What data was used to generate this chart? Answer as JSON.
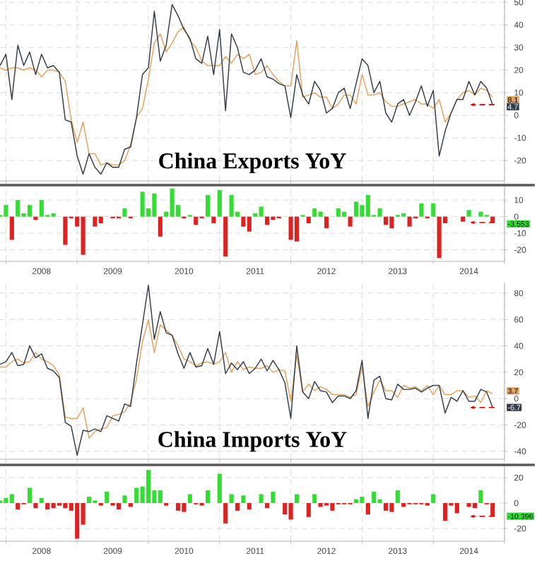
{
  "chart_data": [
    {
      "type": "line",
      "title": "China Exports YoY",
      "x": [
        "2007-12",
        "2008-01",
        "2008-02",
        "2008-03",
        "2008-04",
        "2008-05",
        "2008-06",
        "2008-07",
        "2008-08",
        "2008-09",
        "2008-10",
        "2008-11",
        "2008-12",
        "2009-01",
        "2009-02",
        "2009-03",
        "2009-04",
        "2009-05",
        "2009-06",
        "2009-07",
        "2009-08",
        "2009-09",
        "2009-10",
        "2009-11",
        "2009-12",
        "2010-01",
        "2010-02",
        "2010-03",
        "2010-04",
        "2010-05",
        "2010-06",
        "2010-07",
        "2010-08",
        "2010-09",
        "2010-10",
        "2010-11",
        "2010-12",
        "2011-01",
        "2011-02",
        "2011-03",
        "2011-04",
        "2011-05",
        "2011-06",
        "2011-07",
        "2011-08",
        "2011-09",
        "2011-10",
        "2011-11",
        "2011-12",
        "2012-01",
        "2012-02",
        "2012-03",
        "2012-04",
        "2012-05",
        "2012-06",
        "2012-07",
        "2012-08",
        "2012-09",
        "2012-10",
        "2012-11",
        "2012-12",
        "2013-01",
        "2013-02",
        "2013-03",
        "2013-04",
        "2013-05",
        "2013-06",
        "2013-07",
        "2013-08",
        "2013-09",
        "2013-10",
        "2013-11",
        "2013-12",
        "2014-01",
        "2014-02",
        "2014-03",
        "2014-04",
        "2014-05",
        "2014-06",
        "2014-07",
        "2014-08",
        "2014-09",
        "2014-10",
        "2014-11"
      ],
      "series": [
        {
          "color": "#e3a35c",
          "values": [
            21,
            20,
            21,
            21,
            20,
            21,
            20,
            17,
            20,
            20,
            19,
            15,
            -2,
            -12,
            -3,
            -17,
            -17,
            -22,
            -21,
            -22,
            -22,
            -20,
            -13,
            -1,
            3,
            16,
            32,
            36,
            28,
            32,
            37,
            39,
            33,
            30,
            24,
            22,
            22,
            22,
            26,
            23,
            27,
            25,
            27,
            18,
            19,
            22,
            18,
            15,
            13,
            13,
            33,
            8,
            9,
            10,
            8,
            8,
            3,
            5,
            9,
            9,
            5,
            18,
            9,
            9,
            10,
            6,
            4,
            4,
            5,
            6,
            7,
            5,
            5,
            3,
            7,
            -3,
            1,
            7,
            10,
            11,
            9,
            12,
            11,
            8.1
          ]
        },
        {
          "color": "#343d4a",
          "values": [
            22,
            27,
            7,
            31,
            22,
            28,
            18,
            27,
            21,
            22,
            19,
            -2,
            -3,
            -18,
            -26,
            -17,
            -23,
            -26,
            -21,
            -23,
            -23,
            -15,
            -14,
            -1,
            18,
            21,
            46,
            24,
            31,
            49,
            44,
            38,
            34,
            25,
            23,
            35,
            18,
            38,
            2,
            36,
            30,
            19,
            18,
            20,
            25,
            17,
            16,
            14,
            13,
            -1,
            18,
            9,
            5,
            15,
            11,
            1,
            3,
            10,
            12,
            3,
            14,
            25,
            22,
            10,
            15,
            1,
            -3,
            5,
            7,
            0,
            6,
            13,
            4,
            11,
            -18,
            -7,
            1,
            7,
            7,
            15,
            9,
            15,
            12,
            4.7
          ]
        }
      ],
      "xlim": [
        "2007-12",
        "2015-01"
      ],
      "xticks": [
        {
          "value": "2008-01",
          "label": null
        },
        {
          "value": "2009-01",
          "label": null
        },
        {
          "value": "2010-01",
          "label": null
        },
        {
          "value": "2011-01",
          "label": null
        },
        {
          "value": "2012-01",
          "label": null
        },
        {
          "value": "2013-01",
          "label": null
        },
        {
          "value": "2014-01",
          "label": null
        },
        {
          "value": "2015-01",
          "label": null
        }
      ],
      "ylim": [
        -29,
        51
      ],
      "yticks": [
        -20,
        -10,
        0,
        10,
        20,
        30,
        40,
        50
      ],
      "tick_labels": "y",
      "grid": true,
      "annotations": [
        {
          "text": "8.1",
          "x": "2014-11",
          "y": 8.1
        },
        {
          "text": "4.7",
          "x": "2014-11",
          "y": 4.7
        }
      ]
    },
    {
      "type": "bar",
      "x": [
        "2007-12",
        "2008-01",
        "2008-02",
        "2008-03",
        "2008-04",
        "2008-05",
        "2008-06",
        "2008-07",
        "2008-08",
        "2008-09",
        "2008-10",
        "2008-11",
        "2008-12",
        "2009-01",
        "2009-02",
        "2009-03",
        "2009-04",
        "2009-05",
        "2009-06",
        "2009-07",
        "2009-08",
        "2009-09",
        "2009-10",
        "2009-11",
        "2009-12",
        "2010-01",
        "2010-02",
        "2010-03",
        "2010-04",
        "2010-05",
        "2010-06",
        "2010-07",
        "2010-08",
        "2010-09",
        "2010-10",
        "2010-11",
        "2010-12",
        "2011-01",
        "2011-02",
        "2011-03",
        "2011-04",
        "2011-05",
        "2011-06",
        "2011-07",
        "2011-08",
        "2011-09",
        "2011-10",
        "2011-11",
        "2011-12",
        "2012-01",
        "2012-02",
        "2012-03",
        "2012-04",
        "2012-05",
        "2012-06",
        "2012-07",
        "2012-08",
        "2012-09",
        "2012-10",
        "2012-11",
        "2012-12",
        "2013-01",
        "2013-02",
        "2013-03",
        "2013-04",
        "2013-05",
        "2013-06",
        "2013-07",
        "2013-08",
        "2013-09",
        "2013-10",
        "2013-11",
        "2013-12",
        "2014-01",
        "2014-02",
        "2014-03",
        "2014-04",
        "2014-05",
        "2014-06",
        "2014-07",
        "2014-08",
        "2014-09",
        "2014-10",
        "2014-11"
      ],
      "values": [
        1,
        7,
        -14,
        10,
        2,
        7,
        -2,
        10,
        1,
        2,
        0,
        -17,
        -1,
        -6,
        -23,
        0,
        -6,
        -4,
        0,
        -1,
        -1,
        5,
        -1,
        0,
        15,
        5,
        14,
        -12,
        3,
        17,
        7,
        -1,
        1,
        -5,
        -1,
        13,
        -4,
        16,
        -24,
        13,
        3,
        -6,
        -9,
        2,
        6,
        -5,
        -2,
        -1,
        0,
        -14,
        -15,
        1,
        -4,
        5,
        3,
        -7,
        0,
        5,
        3,
        -6,
        9,
        7,
        13,
        1,
        5,
        -5,
        -7,
        1,
        2,
        -6,
        -1,
        8,
        -1,
        8,
        -25,
        -4,
        0,
        0,
        -3,
        4,
        0,
        3,
        1,
        -3.553
      ],
      "colors": [
        "#33dd33",
        "#33dd33",
        "#dd2222",
        "#33dd33",
        "#33dd33",
        "#33dd33",
        "#dd2222",
        "#33dd33",
        "#33dd33",
        "#33dd33",
        "#33dd33",
        "#dd2222",
        "#dd2222",
        "#dd2222",
        "#dd2222",
        "#33dd33",
        "#dd2222",
        "#dd2222",
        "#33dd33",
        "#dd2222",
        "#dd2222",
        "#33dd33",
        "#dd2222",
        "#33dd33",
        "#33dd33",
        "#33dd33",
        "#33dd33",
        "#dd2222",
        "#33dd33",
        "#33dd33",
        "#33dd33",
        "#dd2222",
        "#33dd33",
        "#dd2222",
        "#dd2222",
        "#33dd33",
        "#dd2222",
        "#33dd33",
        "#dd2222",
        "#33dd33",
        "#33dd33",
        "#dd2222",
        "#dd2222",
        "#33dd33",
        "#33dd33",
        "#dd2222",
        "#dd2222",
        "#dd2222",
        "#33dd33",
        "#dd2222",
        "#dd2222",
        "#33dd33",
        "#dd2222",
        "#33dd33",
        "#33dd33",
        "#dd2222",
        "#33dd33",
        "#33dd33",
        "#33dd33",
        "#dd2222",
        "#33dd33",
        "#33dd33",
        "#33dd33",
        "#33dd33",
        "#33dd33",
        "#dd2222",
        "#dd2222",
        "#33dd33",
        "#33dd33",
        "#dd2222",
        "#dd2222",
        "#33dd33",
        "#dd2222",
        "#33dd33",
        "#dd2222",
        "#dd2222",
        "#33dd33",
        "#33dd33",
        "#dd2222",
        "#33dd33",
        "#33dd33",
        "#33dd33",
        "#33dd33",
        "#dd2222"
      ],
      "xlim": [
        "2007-12",
        "2015-01"
      ],
      "xticks": [
        {
          "value": "2008-01",
          "label": null
        },
        {
          "value": "2008-07",
          "label": "2008"
        },
        {
          "value": "2009-01",
          "label": null
        },
        {
          "value": "2009-07",
          "label": "2009"
        },
        {
          "value": "2010-01",
          "label": null
        },
        {
          "value": "2010-07",
          "label": "2010"
        },
        {
          "value": "2011-01",
          "label": null
        },
        {
          "value": "2011-07",
          "label": "2011"
        },
        {
          "value": "2012-01",
          "label": null
        },
        {
          "value": "2012-07",
          "label": "2012"
        },
        {
          "value": "2013-01",
          "label": null
        },
        {
          "value": "2013-07",
          "label": "2013"
        },
        {
          "value": "2014-01",
          "label": null
        },
        {
          "value": "2014-07",
          "label": "2014"
        },
        {
          "value": "2015-01",
          "label": null
        }
      ],
      "ylim": [
        -27,
        19
      ],
      "yticks": [
        -20,
        -10,
        0,
        10
      ],
      "grid": true,
      "annotations": [
        {
          "text": "-3.553",
          "x": "2014-11",
          "y": -3.553
        }
      ]
    },
    {
      "type": "line",
      "title": "China Imports YoY",
      "x": [
        "2007-12",
        "2008-01",
        "2008-02",
        "2008-03",
        "2008-04",
        "2008-05",
        "2008-06",
        "2008-07",
        "2008-08",
        "2008-09",
        "2008-10",
        "2008-11",
        "2008-12",
        "2009-01",
        "2009-02",
        "2009-03",
        "2009-04",
        "2009-05",
        "2009-06",
        "2009-07",
        "2009-08",
        "2009-09",
        "2009-10",
        "2009-11",
        "2009-12",
        "2010-01",
        "2010-02",
        "2010-03",
        "2010-04",
        "2010-05",
        "2010-06",
        "2010-07",
        "2010-08",
        "2010-09",
        "2010-10",
        "2010-11",
        "2010-12",
        "2011-01",
        "2011-02",
        "2011-03",
        "2011-04",
        "2011-05",
        "2011-06",
        "2011-07",
        "2011-08",
        "2011-09",
        "2011-10",
        "2011-11",
        "2011-12",
        "2012-01",
        "2012-02",
        "2012-03",
        "2012-04",
        "2012-05",
        "2012-06",
        "2012-07",
        "2012-08",
        "2012-09",
        "2012-10",
        "2012-11",
        "2012-12",
        "2013-01",
        "2013-02",
        "2013-03",
        "2013-04",
        "2013-05",
        "2013-06",
        "2013-07",
        "2013-08",
        "2013-09",
        "2013-10",
        "2013-11",
        "2013-12",
        "2014-01",
        "2014-02",
        "2014-03",
        "2014-04",
        "2014-05",
        "2014-06",
        "2014-07",
        "2014-08",
        "2014-09",
        "2014-10",
        "2014-11"
      ],
      "series": [
        {
          "color": "#e3a35c",
          "values": [
            24,
            24,
            28,
            30,
            27,
            28,
            35,
            30,
            28,
            25,
            18,
            -14,
            -15,
            -15,
            -7,
            -30,
            -25,
            -23,
            -22,
            -13,
            -12,
            -10,
            -3,
            15,
            43,
            60,
            35,
            56,
            52,
            48,
            40,
            30,
            28,
            25,
            27,
            28,
            26,
            28,
            35,
            20,
            28,
            22,
            24,
            23,
            23,
            25,
            20,
            22,
            21,
            -2,
            33,
            5,
            11,
            6,
            9,
            7,
            3,
            3,
            3,
            1,
            3,
            24,
            -6,
            5,
            14,
            6,
            6,
            1,
            10,
            8,
            9,
            6,
            10,
            3,
            10,
            3,
            3,
            6,
            6,
            1,
            2,
            -3,
            6,
            3.7
          ]
        },
        {
          "color": "#343d4a",
          "values": [
            26,
            28,
            35,
            25,
            26,
            40,
            31,
            34,
            23,
            21,
            16,
            -18,
            -21,
            -43,
            -24,
            -25,
            -23,
            -25,
            -13,
            -15,
            -17,
            -4,
            -6,
            27,
            56,
            86,
            45,
            66,
            50,
            48,
            34,
            23,
            35,
            24,
            25,
            38,
            26,
            51,
            19,
            27,
            22,
            28,
            19,
            23,
            30,
            21,
            29,
            22,
            12,
            -15,
            40,
            5,
            0,
            13,
            6,
            5,
            -3,
            2,
            2,
            0,
            6,
            29,
            -15,
            14,
            17,
            0,
            -1,
            11,
            7,
            7,
            8,
            5,
            8,
            10,
            10,
            -11,
            1,
            -2,
            6,
            -2,
            -2,
            7,
            5,
            -6.7
          ]
        }
      ],
      "xlim": [
        "2007-12",
        "2015-01"
      ],
      "xticks": [
        {
          "value": "2008-01",
          "label": null
        },
        {
          "value": "2009-01",
          "label": null
        },
        {
          "value": "2010-01",
          "label": null
        },
        {
          "value": "2011-01",
          "label": null
        },
        {
          "value": "2012-01",
          "label": null
        },
        {
          "value": "2013-01",
          "label": null
        },
        {
          "value": "2014-01",
          "label": null
        },
        {
          "value": "2015-01",
          "label": null
        }
      ],
      "ylim": [
        -46,
        88
      ],
      "yticks": [
        -40,
        -20,
        0,
        20,
        40,
        60,
        80
      ],
      "tick_labels": "y",
      "grid": true,
      "annotations": [
        {
          "text": "3.7",
          "x": "2014-11",
          "y": 3.7
        },
        {
          "text": "-6.7",
          "x": "2014-11",
          "y": -6.7
        }
      ]
    },
    {
      "type": "bar",
      "x": [
        "2007-12",
        "2008-01",
        "2008-02",
        "2008-03",
        "2008-04",
        "2008-05",
        "2008-06",
        "2008-07",
        "2008-08",
        "2008-09",
        "2008-10",
        "2008-11",
        "2008-12",
        "2009-01",
        "2009-02",
        "2009-03",
        "2009-04",
        "2009-05",
        "2009-06",
        "2009-07",
        "2009-08",
        "2009-09",
        "2009-10",
        "2009-11",
        "2009-12",
        "2010-01",
        "2010-02",
        "2010-03",
        "2010-04",
        "2010-05",
        "2010-06",
        "2010-07",
        "2010-08",
        "2010-09",
        "2010-10",
        "2010-11",
        "2010-12",
        "2011-01",
        "2011-02",
        "2011-03",
        "2011-04",
        "2011-05",
        "2011-06",
        "2011-07",
        "2011-08",
        "2011-09",
        "2011-10",
        "2011-11",
        "2011-12",
        "2012-01",
        "2012-02",
        "2012-03",
        "2012-04",
        "2012-05",
        "2012-06",
        "2012-07",
        "2012-08",
        "2012-09",
        "2012-10",
        "2012-11",
        "2012-12",
        "2013-01",
        "2013-02",
        "2013-03",
        "2013-04",
        "2013-05",
        "2013-06",
        "2013-07",
        "2013-08",
        "2013-09",
        "2013-10",
        "2013-11",
        "2013-12",
        "2014-01",
        "2014-02",
        "2014-03",
        "2014-04",
        "2014-05",
        "2014-06",
        "2014-07",
        "2014-08",
        "2014-09",
        "2014-10",
        "2014-11"
      ],
      "values": [
        2,
        4,
        7,
        -5,
        -1,
        12,
        -4,
        4,
        -5,
        -4,
        -2,
        -4,
        -6,
        -28,
        -17,
        5,
        2,
        -2,
        9,
        -2,
        -5,
        6,
        -3,
        12,
        13,
        26,
        10,
        10,
        -2,
        0,
        -6,
        -7,
        7,
        -1,
        -2,
        10,
        0,
        23,
        -16,
        7,
        -6,
        6,
        -5,
        0,
        7,
        -4,
        9,
        0,
        -9,
        -13,
        7,
        0,
        -11,
        7,
        -3,
        -2,
        -6,
        -1,
        -1,
        -1,
        3,
        5,
        -9,
        9,
        3,
        -6,
        -7,
        10,
        -3,
        -1,
        -1,
        -1,
        -2,
        7,
        0,
        -14,
        -2,
        -8,
        0,
        -3,
        -4,
        10,
        -1,
        -10.396
      ],
      "colors": [
        "#33dd33",
        "#33dd33",
        "#33dd33",
        "#dd2222",
        "#dd2222",
        "#33dd33",
        "#dd2222",
        "#33dd33",
        "#dd2222",
        "#dd2222",
        "#dd2222",
        "#dd2222",
        "#dd2222",
        "#dd2222",
        "#dd2222",
        "#33dd33",
        "#33dd33",
        "#dd2222",
        "#33dd33",
        "#dd2222",
        "#dd2222",
        "#33dd33",
        "#dd2222",
        "#33dd33",
        "#33dd33",
        "#33dd33",
        "#33dd33",
        "#33dd33",
        "#dd2222",
        "#33dd33",
        "#dd2222",
        "#dd2222",
        "#33dd33",
        "#dd2222",
        "#dd2222",
        "#33dd33",
        "#33dd33",
        "#33dd33",
        "#dd2222",
        "#33dd33",
        "#dd2222",
        "#33dd33",
        "#dd2222",
        "#33dd33",
        "#33dd33",
        "#dd2222",
        "#33dd33",
        "#33dd33",
        "#dd2222",
        "#dd2222",
        "#33dd33",
        "#33dd33",
        "#dd2222",
        "#33dd33",
        "#dd2222",
        "#dd2222",
        "#dd2222",
        "#dd2222",
        "#dd2222",
        "#dd2222",
        "#33dd33",
        "#33dd33",
        "#dd2222",
        "#33dd33",
        "#33dd33",
        "#dd2222",
        "#dd2222",
        "#33dd33",
        "#dd2222",
        "#dd2222",
        "#dd2222",
        "#dd2222",
        "#dd2222",
        "#33dd33",
        "#33dd33",
        "#dd2222",
        "#dd2222",
        "#dd2222",
        "#33dd33",
        "#dd2222",
        "#dd2222",
        "#33dd33",
        "#dd2222",
        "#dd2222"
      ],
      "xlim": [
        "2007-12",
        "2015-01"
      ],
      "xticks": [
        {
          "value": "2008-01",
          "label": null
        },
        {
          "value": "2008-07",
          "label": "2008"
        },
        {
          "value": "2009-01",
          "label": null
        },
        {
          "value": "2009-07",
          "label": "2009"
        },
        {
          "value": "2010-01",
          "label": null
        },
        {
          "value": "2010-07",
          "label": "2010"
        },
        {
          "value": "2011-01",
          "label": null
        },
        {
          "value": "2011-07",
          "label": "2011"
        },
        {
          "value": "2012-01",
          "label": null
        },
        {
          "value": "2012-07",
          "label": "2012"
        },
        {
          "value": "2013-01",
          "label": null
        },
        {
          "value": "2013-07",
          "label": "2013"
        },
        {
          "value": "2014-01",
          "label": null
        },
        {
          "value": "2014-07",
          "label": "2014"
        },
        {
          "value": "2015-01",
          "label": null
        }
      ],
      "ylim": [
        -30,
        30
      ],
      "yticks": [
        -20,
        0,
        20
      ],
      "grid": true,
      "annotations": [
        {
          "text": "-10.396",
          "x": "2014-11",
          "y": -10.396
        }
      ]
    }
  ]
}
